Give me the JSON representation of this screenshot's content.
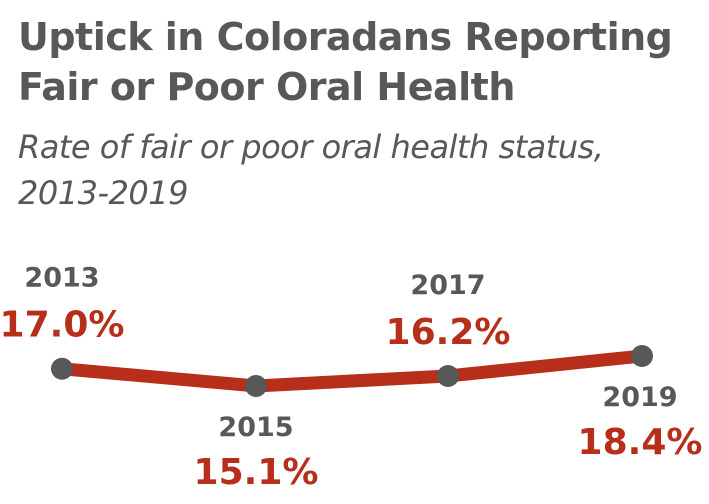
{
  "title": "Uptick in Coloradans Reporting Fair or Poor Oral Health",
  "subtitle": "Rate of fair or poor oral health status, 2013-2019",
  "colors": {
    "line": "#b72e1a",
    "marker": "#58585a",
    "label": "#b72e1a",
    "year": "#58585a",
    "text": "#58585a"
  },
  "chart_data": {
    "type": "line",
    "x": [
      "2013",
      "2015",
      "2017",
      "2019"
    ],
    "values": [
      17.0,
      15.1,
      16.2,
      18.4
    ],
    "value_labels": [
      "17.0%",
      "15.1%",
      "16.2%",
      "18.4%"
    ],
    "grid": false,
    "axes_visible": false
  }
}
